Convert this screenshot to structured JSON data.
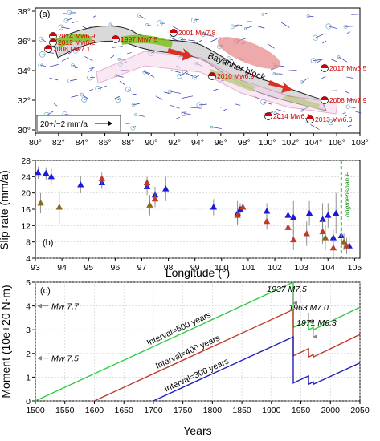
{
  "panel_a": {
    "letter": "(a)",
    "xticks": [
      "80°",
      "82°",
      "84°",
      "86°",
      "88°",
      "90°",
      "92°",
      "94°",
      "96°",
      "98°",
      "100°",
      "102°",
      "104°",
      "106°",
      "108°"
    ],
    "yticks": [
      "38°",
      "36°",
      "34°",
      "32°",
      "30°"
    ],
    "block_label": "Bayanhar block",
    "scale_label": "20+/−2 mm/a",
    "quakes": [
      {
        "label": "2014 Mw6.9",
        "color": "#d60000"
      },
      {
        "label": "2012 Mw6.2",
        "color": "#d60000"
      },
      {
        "label": "2008 Mw7.1",
        "color": "#d60000"
      },
      {
        "label": "1997 Mw7.5",
        "color": "#d60000"
      },
      {
        "label": "2001 Mw7.8",
        "color": "#d60000"
      },
      {
        "label": "2010 Mw6.9",
        "color": "#d60000"
      },
      {
        "label": "2017 Mw6.5",
        "color": "#d60000"
      },
      {
        "label": "2008 Mw7.9",
        "color": "#d60000"
      },
      {
        "label": "2014 Mw6.1",
        "color": "#d60000"
      },
      {
        "label": "2013 Mw6.6",
        "color": "#d60000"
      }
    ]
  },
  "chart_data": [
    {
      "type": "scatter",
      "panel": "(b)",
      "xlabel": "Longitude (°)",
      "ylabel": "Slip rate (mm/a)",
      "xlim": [
        93,
        105.2
      ],
      "ylim": [
        4,
        28
      ],
      "xticks": [
        "93",
        "94",
        "95",
        "96",
        "97",
        "98",
        "99",
        "100",
        "101",
        "102",
        "103",
        "104",
        "105"
      ],
      "yticks": [
        "4",
        "8",
        "12",
        "16",
        "20",
        "24",
        "28"
      ],
      "annotation": "Longmenshan F",
      "annotation_x": 104.5,
      "series": [
        {
          "marker": "blue-triangle",
          "color": "#1a1ad6",
          "points": [
            {
              "x": 93.1,
              "y": 25.0,
              "err": 1.5
            },
            {
              "x": 93.4,
              "y": 24.8,
              "err": 1.5
            },
            {
              "x": 93.6,
              "y": 24.0,
              "err": 2.0
            },
            {
              "x": 94.7,
              "y": 22.0,
              "err": 2.0
            },
            {
              "x": 95.5,
              "y": 22.5,
              "err": 1.5
            },
            {
              "x": 97.2,
              "y": 21.5,
              "err": 2.0
            },
            {
              "x": 97.5,
              "y": 19.5,
              "err": 2.0
            },
            {
              "x": 97.9,
              "y": 21.0,
              "err": 3.0
            },
            {
              "x": 99.7,
              "y": 16.5,
              "err": 2.0
            },
            {
              "x": 100.6,
              "y": 15.0,
              "err": 3.0
            },
            {
              "x": 100.7,
              "y": 16.0,
              "err": 1.5
            },
            {
              "x": 101.7,
              "y": 15.5,
              "err": 2.0
            },
            {
              "x": 102.5,
              "y": 14.5,
              "err": 4.0
            },
            {
              "x": 102.7,
              "y": 14.0,
              "err": 4.0
            },
            {
              "x": 103.3,
              "y": 15.0,
              "err": 3.0
            },
            {
              "x": 103.8,
              "y": 13.5,
              "err": 4.0
            },
            {
              "x": 104.0,
              "y": 14.5,
              "err": 3.0
            },
            {
              "x": 104.2,
              "y": 9.0,
              "err": 2.0
            },
            {
              "x": 104.3,
              "y": 15.0,
              "err": 5.0
            },
            {
              "x": 104.5,
              "y": 9.5,
              "err": 3.0
            },
            {
              "x": 104.8,
              "y": 7.0,
              "err": 2.0
            }
          ]
        },
        {
          "marker": "red-triangle",
          "color": "#c0392b",
          "points": [
            {
              "x": 95.5,
              "y": 23.5,
              "err": 1.5
            },
            {
              "x": 97.2,
              "y": 22.5,
              "err": 1.5
            },
            {
              "x": 97.5,
              "y": 18.5,
              "err": 2.0
            },
            {
              "x": 100.6,
              "y": 14.5,
              "err": 2.0
            },
            {
              "x": 100.8,
              "y": 16.5,
              "err": 1.5
            },
            {
              "x": 101.7,
              "y": 13.0,
              "err": 2.0
            },
            {
              "x": 102.5,
              "y": 11.5,
              "err": 3.5
            },
            {
              "x": 102.7,
              "y": 8.5,
              "err": 2.5
            },
            {
              "x": 103.2,
              "y": 10.0,
              "err": 3.0
            },
            {
              "x": 103.8,
              "y": 10.5,
              "err": 3.0
            },
            {
              "x": 104.2,
              "y": 6.5,
              "err": 2.5
            },
            {
              "x": 104.7,
              "y": 7.0,
              "err": 2.0
            }
          ]
        },
        {
          "marker": "olive-triangle",
          "color": "#8a6a1a",
          "points": [
            {
              "x": 93.2,
              "y": 17.5,
              "err": 2.5
            },
            {
              "x": 93.9,
              "y": 16.5,
              "err": 4.0
            },
            {
              "x": 97.3,
              "y": 17.0,
              "err": 2.5
            },
            {
              "x": 103.9,
              "y": 9.0,
              "err": 3.0
            },
            {
              "x": 104.6,
              "y": 8.0,
              "err": 2.0
            }
          ]
        }
      ]
    },
    {
      "type": "line",
      "panel": "(c)",
      "xlabel": "Years",
      "ylabel": "Moment (10e+20 N·m)",
      "xlim": [
        1500,
        2050
      ],
      "ylim": [
        0,
        5
      ],
      "xticks": [
        "1500",
        "1550",
        "1600",
        "1650",
        "1700",
        "1750",
        "1800",
        "1850",
        "1900",
        "1950",
        "2000",
        "2050"
      ],
      "yticks": [
        "0",
        "1",
        "2",
        "3",
        "4",
        "5"
      ],
      "series": [
        {
          "name": "Interval=500 years",
          "color": "#2ecc40",
          "points": [
            [
              1500,
              0
            ],
            [
              1937,
              5.0
            ],
            [
              1937,
              3.1
            ],
            [
              1963,
              3.35
            ],
            [
              1963,
              3.0
            ],
            [
              1971,
              3.1
            ],
            [
              1971,
              3.0
            ],
            [
              2050,
              3.95
            ]
          ]
        },
        {
          "name": "Interval=400 years",
          "color": "#c0392b",
          "points": [
            [
              1600,
              0
            ],
            [
              1937,
              3.85
            ],
            [
              1937,
              1.9
            ],
            [
              1963,
              2.2
            ],
            [
              1963,
              1.85
            ],
            [
              1971,
              1.95
            ],
            [
              1971,
              1.85
            ],
            [
              2050,
              2.8
            ]
          ]
        },
        {
          "name": "Interval=300 years",
          "color": "#2020c0",
          "points": [
            [
              1700,
              0
            ],
            [
              1937,
              2.7
            ],
            [
              1937,
              0.75
            ],
            [
              1963,
              1.05
            ],
            [
              1963,
              0.7
            ],
            [
              1971,
              0.8
            ],
            [
              1971,
              0.7
            ],
            [
              2050,
              1.6
            ]
          ]
        }
      ],
      "events": [
        {
          "label": "1937 M7.5",
          "year": 1937
        },
        {
          "label": "1963 M7.0",
          "year": 1963
        },
        {
          "label": "1971 M6.3",
          "year": 1971
        }
      ],
      "reference_marks": [
        {
          "label": "Mw 7.7",
          "value": 4.0
        },
        {
          "label": "Mw 7.5",
          "value": 1.8
        }
      ]
    }
  ]
}
